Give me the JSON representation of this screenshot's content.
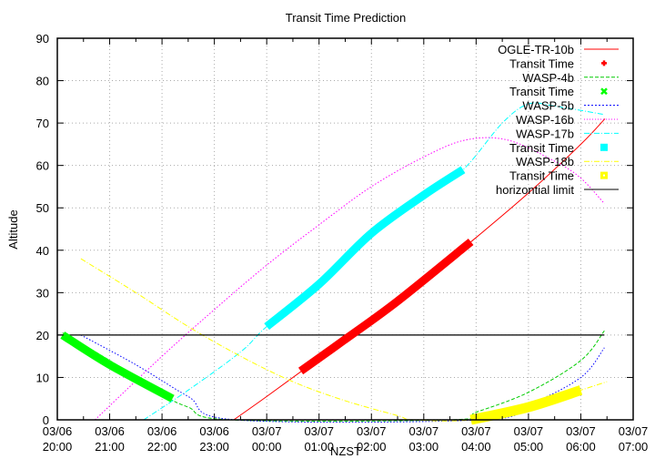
{
  "chart_data": {
    "type": "line",
    "title": "Transit Time Prediction",
    "xlabel": "NZST",
    "ylabel": "Altitude",
    "ylim": [
      0,
      90
    ],
    "xlim_hours_from_2000": [
      0,
      11
    ],
    "grid": true,
    "legend_position": "top-right, inside",
    "yticks": [
      0,
      10,
      20,
      30,
      40,
      50,
      60,
      70,
      80,
      90
    ],
    "xticks": [
      {
        "date": "03/06",
        "time": "20:00"
      },
      {
        "date": "03/06",
        "time": "21:00"
      },
      {
        "date": "03/06",
        "time": "22:00"
      },
      {
        "date": "03/06",
        "time": "23:00"
      },
      {
        "date": "03/07",
        "time": "00:00"
      },
      {
        "date": "03/07",
        "time": "01:00"
      },
      {
        "date": "03/07",
        "time": "02:00"
      },
      {
        "date": "03/07",
        "time": "03:00"
      },
      {
        "date": "03/07",
        "time": "04:00"
      },
      {
        "date": "03/07",
        "time": "05:00"
      },
      {
        "date": "03/07",
        "time": "06:00"
      },
      {
        "date": "03/07",
        "time": "07:00"
      }
    ],
    "series": [
      {
        "name": "OGLE-TR-10b",
        "color": "#ff0000",
        "style": "solid",
        "points": [
          [
            3.37,
            0
          ],
          [
            4,
            5.5
          ],
          [
            5,
            14.5
          ],
          [
            6,
            23.5
          ],
          [
            7,
            33
          ],
          [
            8,
            43
          ],
          [
            9,
            53.5
          ],
          [
            10,
            65
          ],
          [
            10.46,
            71
          ]
        ]
      },
      {
        "name": "Transit Time",
        "for": "OGLE-TR-10b",
        "color": "#ff0000",
        "style": "thick",
        "points": [
          [
            4.65,
            11.5
          ],
          [
            5.5,
            19
          ],
          [
            6.5,
            28
          ],
          [
            7.9,
            42
          ]
        ]
      },
      {
        "name": "WASP-4b",
        "color": "#00cc00",
        "style": "dashed",
        "points": [
          [
            0.1,
            20.5
          ],
          [
            1,
            14
          ],
          [
            2,
            6
          ],
          [
            2.5,
            3
          ],
          [
            3.3,
            0
          ],
          [
            7.5,
            0
          ],
          [
            8,
            1.8
          ],
          [
            9,
            6.5
          ],
          [
            10,
            14
          ],
          [
            10.45,
            21
          ]
        ]
      },
      {
        "name": "Transit Time",
        "for": "WASP-4b",
        "color": "#00ff00",
        "style": "thick",
        "points": [
          [
            0.1,
            20
          ],
          [
            1,
            13
          ],
          [
            2.2,
            5
          ]
        ]
      },
      {
        "name": "WASP-5b",
        "color": "#0000ff",
        "style": "dotted",
        "points": [
          [
            0.45,
            20
          ],
          [
            1.5,
            13
          ],
          [
            2.5,
            5.5
          ],
          [
            3.4,
            0
          ],
          [
            8.1,
            0
          ],
          [
            9,
            3.5
          ],
          [
            10,
            10
          ],
          [
            10.45,
            17
          ]
        ]
      },
      {
        "name": "WASP-16b",
        "color": "#ff00ff",
        "style": "dotted",
        "points": [
          [
            0.72,
            0
          ],
          [
            2,
            15
          ],
          [
            3,
            26
          ],
          [
            4,
            36.5
          ],
          [
            5,
            46
          ],
          [
            6,
            55
          ],
          [
            7,
            62
          ],
          [
            7.8,
            66
          ],
          [
            8.6,
            66
          ],
          [
            9.5,
            61
          ],
          [
            10,
            57
          ],
          [
            10.45,
            51
          ]
        ]
      },
      {
        "name": "WASP-17b",
        "color": "#00ffff",
        "style": "dashdot",
        "points": [
          [
            1.65,
            0
          ],
          [
            2.5,
            7
          ],
          [
            3.5,
            16
          ],
          [
            4,
            22
          ],
          [
            5,
            32
          ],
          [
            6,
            44
          ],
          [
            7,
            53
          ],
          [
            7.75,
            59
          ],
          [
            8.5,
            70
          ],
          [
            9,
            74.5
          ],
          [
            9.5,
            74
          ],
          [
            10.45,
            72
          ]
        ]
      },
      {
        "name": "Transit Time",
        "for": "WASP-17b",
        "color": "#00ffff",
        "style": "thick",
        "points": [
          [
            4.0,
            22
          ],
          [
            5,
            32
          ],
          [
            6,
            44
          ],
          [
            7,
            53
          ],
          [
            7.75,
            59
          ]
        ]
      },
      {
        "name": "WASP-18b",
        "color": "#ffff00",
        "style": "dashdot",
        "points": [
          [
            0.45,
            38
          ],
          [
            1.5,
            30
          ],
          [
            2.5,
            22
          ],
          [
            3.5,
            15
          ],
          [
            4.5,
            9
          ],
          [
            5.5,
            4.5
          ],
          [
            6.5,
            1
          ],
          [
            6.8,
            0
          ],
          [
            7.9,
            0
          ],
          [
            9,
            3
          ],
          [
            10,
            7
          ],
          [
            10.5,
            9
          ]
        ]
      },
      {
        "name": "Transit Time",
        "for": "WASP-18b",
        "color": "#ffff00",
        "style": "thick",
        "points": [
          [
            7.9,
            0
          ],
          [
            9,
            3
          ],
          [
            10,
            7
          ]
        ]
      },
      {
        "name": "horizontial limit",
        "color": "#000000",
        "style": "solid",
        "points": [
          [
            0,
            20
          ],
          [
            10.45,
            20
          ]
        ]
      }
    ]
  },
  "legend": [
    {
      "label": "OGLE-TR-10b",
      "color": "#ff0000",
      "kind": "line",
      "dash": ""
    },
    {
      "label": "Transit Time",
      "color": "#ff0000",
      "kind": "plus"
    },
    {
      "label": "WASP-4b",
      "color": "#00cc00",
      "kind": "line",
      "dash": "4,2"
    },
    {
      "label": "Transit Time",
      "color": "#00ff00",
      "kind": "cross"
    },
    {
      "label": "WASP-5b",
      "color": "#0000ff",
      "kind": "line",
      "dash": "2,2"
    },
    {
      "label": "WASP-16b",
      "color": "#ff00ff",
      "kind": "line",
      "dash": "1,2"
    },
    {
      "label": "WASP-17b",
      "color": "#00ffff",
      "kind": "line",
      "dash": "6,2,1,2"
    },
    {
      "label": "Transit Time",
      "color": "#00ffff",
      "kind": "square"
    },
    {
      "label": "WASP-18b",
      "color": "#ffff00",
      "kind": "line",
      "dash": "6,2,1,2"
    },
    {
      "label": "Transit Time",
      "color": "#ffff00",
      "kind": "square-open"
    },
    {
      "label": "horizontial limit",
      "color": "#000000",
      "kind": "line",
      "dash": ""
    }
  ]
}
